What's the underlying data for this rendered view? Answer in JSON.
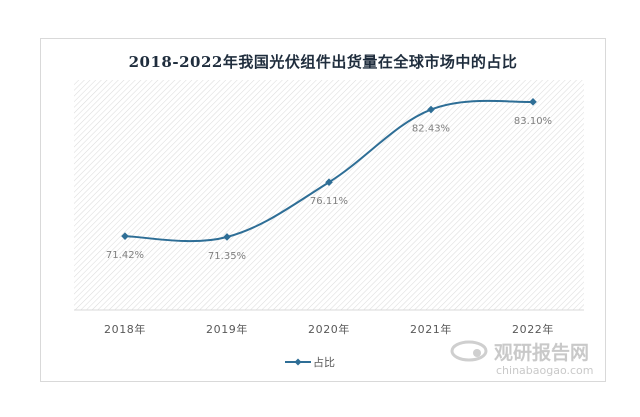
{
  "chart_data": {
    "type": "line",
    "title": "2018-2022年我国光伏组件出货量在全球市场中的占比",
    "categories": [
      "2018年",
      "2019年",
      "2020年",
      "2021年",
      "2022年"
    ],
    "series": [
      {
        "name": "占比",
        "values": [
          71.42,
          71.35,
          76.11,
          82.43,
          83.1
        ],
        "labels": [
          "71.42%",
          "71.35%",
          "76.11%",
          "82.43%",
          "83.10%"
        ]
      }
    ],
    "xlabel": "",
    "ylabel": "",
    "ylim": [
      65,
      85
    ],
    "grid": false,
    "legend": "bottom",
    "colors": {
      "line": "#2e6e96",
      "plot_hatch": "#d9d9d9"
    }
  },
  "watermark": {
    "brand": "观研报告网",
    "url": "chinabaogao.com"
  }
}
